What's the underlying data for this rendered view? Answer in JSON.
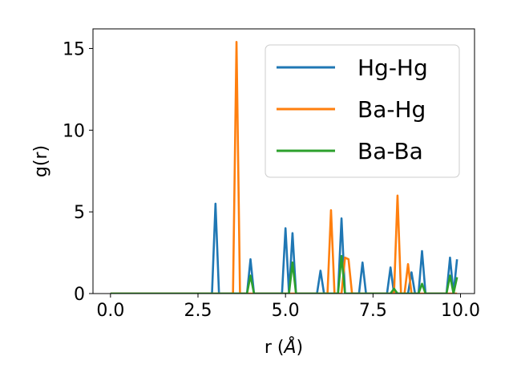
{
  "chart_data": {
    "type": "line",
    "title": "",
    "xlabel": "r (Å)",
    "ylabel": "g(r)",
    "xlim": [
      -0.5,
      10.4
    ],
    "ylim": [
      0,
      16.2
    ],
    "xticks": [
      0.0,
      2.5,
      5.0,
      7.5,
      10.0
    ],
    "xtick_labels": [
      "0.0",
      "2.5",
      "5.0",
      "7.5",
      "10.0"
    ],
    "yticks": [
      0,
      5,
      10,
      15
    ],
    "ytick_labels": [
      "0",
      "5",
      "10",
      "15"
    ],
    "grid": false,
    "legend_position": "top-right",
    "series": [
      {
        "name": "Hg-Hg",
        "color": "#1f77b4",
        "points": [
          [
            0.0,
            0
          ],
          [
            2.9,
            0
          ],
          [
            3.0,
            5.5
          ],
          [
            3.1,
            0
          ],
          [
            3.9,
            0
          ],
          [
            4.0,
            2.1
          ],
          [
            4.1,
            0
          ],
          [
            4.9,
            0
          ],
          [
            5.0,
            4.0
          ],
          [
            5.1,
            0
          ],
          [
            5.2,
            3.7
          ],
          [
            5.3,
            0
          ],
          [
            5.9,
            0
          ],
          [
            6.0,
            1.4
          ],
          [
            6.1,
            0
          ],
          [
            6.5,
            0
          ],
          [
            6.6,
            4.6
          ],
          [
            6.7,
            0
          ],
          [
            7.1,
            0
          ],
          [
            7.2,
            1.9
          ],
          [
            7.3,
            0
          ],
          [
            7.9,
            0
          ],
          [
            8.0,
            1.6
          ],
          [
            8.1,
            0
          ],
          [
            8.5,
            0
          ],
          [
            8.6,
            1.3
          ],
          [
            8.7,
            0
          ],
          [
            8.8,
            0
          ],
          [
            8.9,
            2.6
          ],
          [
            9.0,
            0
          ],
          [
            9.6,
            0
          ],
          [
            9.7,
            2.2
          ],
          [
            9.8,
            0
          ],
          [
            9.9,
            2.1
          ]
        ]
      },
      {
        "name": "Ba-Hg",
        "color": "#ff7f0e",
        "points": [
          [
            0.0,
            0
          ],
          [
            3.5,
            0
          ],
          [
            3.6,
            15.4
          ],
          [
            3.7,
            0
          ],
          [
            6.2,
            0
          ],
          [
            6.3,
            5.1
          ],
          [
            6.4,
            0
          ],
          [
            6.6,
            0
          ],
          [
            6.7,
            2.2
          ],
          [
            6.8,
            2.1
          ],
          [
            6.9,
            0
          ],
          [
            8.1,
            0
          ],
          [
            8.2,
            6.0
          ],
          [
            8.3,
            0
          ],
          [
            8.4,
            0
          ],
          [
            8.5,
            1.8
          ],
          [
            8.6,
            0
          ],
          [
            9.9,
            0
          ]
        ]
      },
      {
        "name": "Ba-Ba",
        "color": "#2ca02c",
        "points": [
          [
            0.0,
            0
          ],
          [
            3.9,
            0
          ],
          [
            4.0,
            1.1
          ],
          [
            4.1,
            0
          ],
          [
            5.1,
            0
          ],
          [
            5.2,
            1.9
          ],
          [
            5.3,
            0
          ],
          [
            6.5,
            0
          ],
          [
            6.6,
            2.3
          ],
          [
            6.7,
            0
          ],
          [
            8.0,
            0
          ],
          [
            8.1,
            0.3
          ],
          [
            8.2,
            0
          ],
          [
            8.8,
            0
          ],
          [
            8.9,
            0.6
          ],
          [
            9.0,
            0
          ],
          [
            9.6,
            0
          ],
          [
            9.7,
            1.1
          ],
          [
            9.8,
            0
          ],
          [
            9.9,
            1.0
          ]
        ]
      }
    ]
  }
}
